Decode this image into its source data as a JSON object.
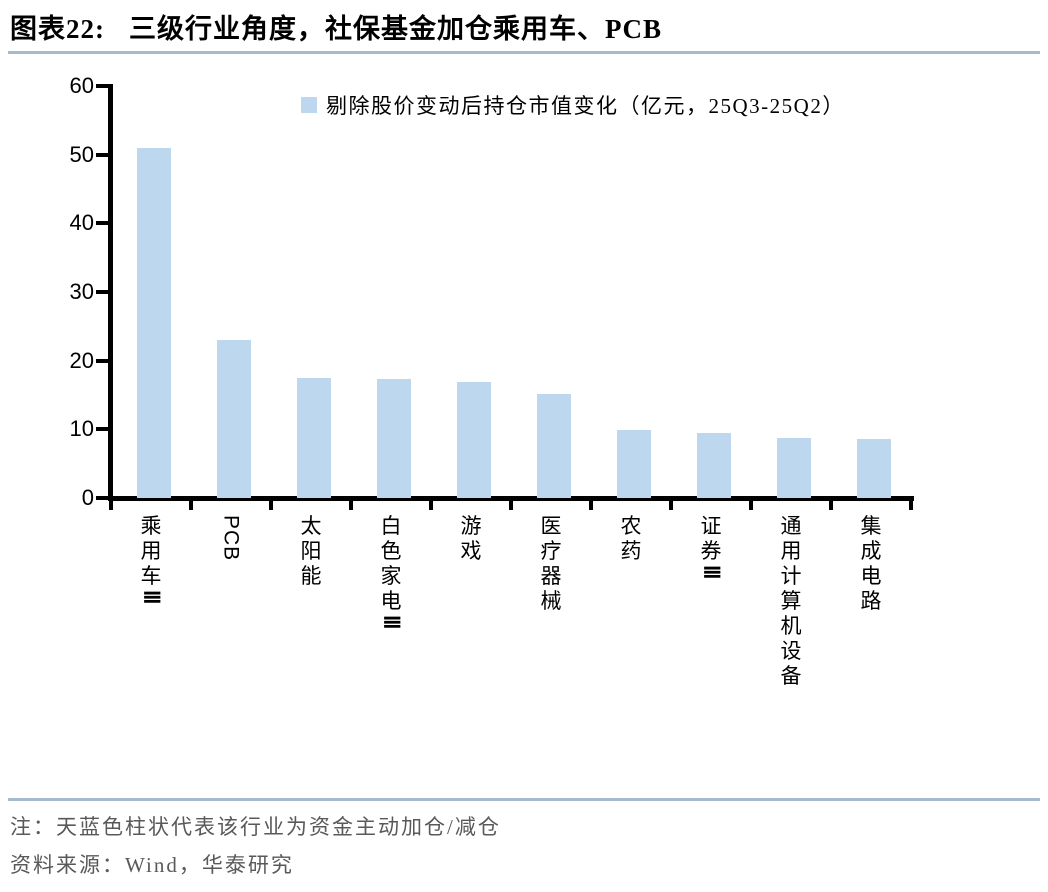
{
  "figure": {
    "number_label": "图表22:",
    "title": "三级行业角度，社保基金加仓乘用车、PCB"
  },
  "chart_data": {
    "type": "bar",
    "legend": "剔除股价变动后持仓市值变化（亿元，25Q3-25Q2）",
    "legend_position": "top",
    "categories": [
      "乘用车Ⅲ",
      "PCB",
      "太阳能",
      "白色家电Ⅲ",
      "游戏",
      "医疗器械",
      "农药",
      "证券Ⅲ",
      "通用计算机设备",
      "集成电路"
    ],
    "values": [
      50.9,
      23.0,
      17.4,
      17.3,
      16.9,
      15.2,
      9.9,
      9.5,
      8.7,
      8.6
    ],
    "xlabel": "",
    "ylabel": "",
    "ylim": [
      0,
      60
    ],
    "yticks": [
      0,
      10,
      20,
      30,
      40,
      50,
      60
    ],
    "grid": false,
    "bar_color": "#BDD7EE"
  },
  "footer": {
    "note": "注：天蓝色柱状代表该行业为资金主动加仓/减仓",
    "source": "资料来源：Wind，华泰研究"
  },
  "colors": {
    "bar": "#BDD7EE",
    "divider": "#A6BACD",
    "axis": "#000000",
    "footer_text": "#595959",
    "title_text": "#000000"
  }
}
